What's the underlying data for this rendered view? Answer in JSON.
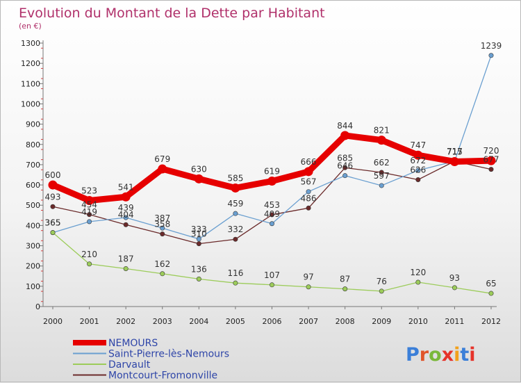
{
  "chart_data": {
    "type": "line",
    "title": "Evolution du Montant de la Dette par Habitant",
    "subtitle": "(en €)",
    "xlabel": "",
    "ylabel": "",
    "categories": [
      "2000",
      "2001",
      "2002",
      "2003",
      "2004",
      "2005",
      "2006",
      "2007",
      "2008",
      "2009",
      "2010",
      "2011",
      "2012"
    ],
    "ylim": [
      0,
      1300
    ],
    "yticks": [
      0,
      100,
      200,
      300,
      400,
      500,
      600,
      700,
      800,
      900,
      1000,
      1100,
      1200,
      1300
    ],
    "grid": false,
    "legend_position": "bottom-left",
    "series": [
      {
        "name": "NEMOURS",
        "color": "#e60000",
        "values": [
          600,
          523,
          541,
          679,
          630,
          585,
          619,
          666,
          844,
          821,
          747,
          715,
          720
        ]
      },
      {
        "name": "Saint-Pierre-lès-Nemours",
        "color": "#6a9fd0",
        "values": [
          365,
          419,
          439,
          387,
          333,
          459,
          409,
          567,
          646,
          597,
          672,
          717,
          1239
        ]
      },
      {
        "name": "Darvault",
        "color": "#9ccc5a",
        "values": [
          365,
          210,
          187,
          162,
          136,
          116,
          107,
          97,
          87,
          76,
          120,
          93,
          65
        ]
      },
      {
        "name": "Montcourt-Fromonville",
        "color": "#6a2a2a",
        "values": [
          493,
          454,
          404,
          358,
          310,
          332,
          453,
          486,
          685,
          662,
          626,
          717,
          677
        ]
      }
    ]
  },
  "logo": {
    "text": "Proxiti",
    "letter_colors": [
      "#3b7fd8",
      "#e0542a",
      "#7ab83a",
      "#e6332a",
      "#f2a11b",
      "#3b7fd8",
      "#e6332a"
    ]
  }
}
